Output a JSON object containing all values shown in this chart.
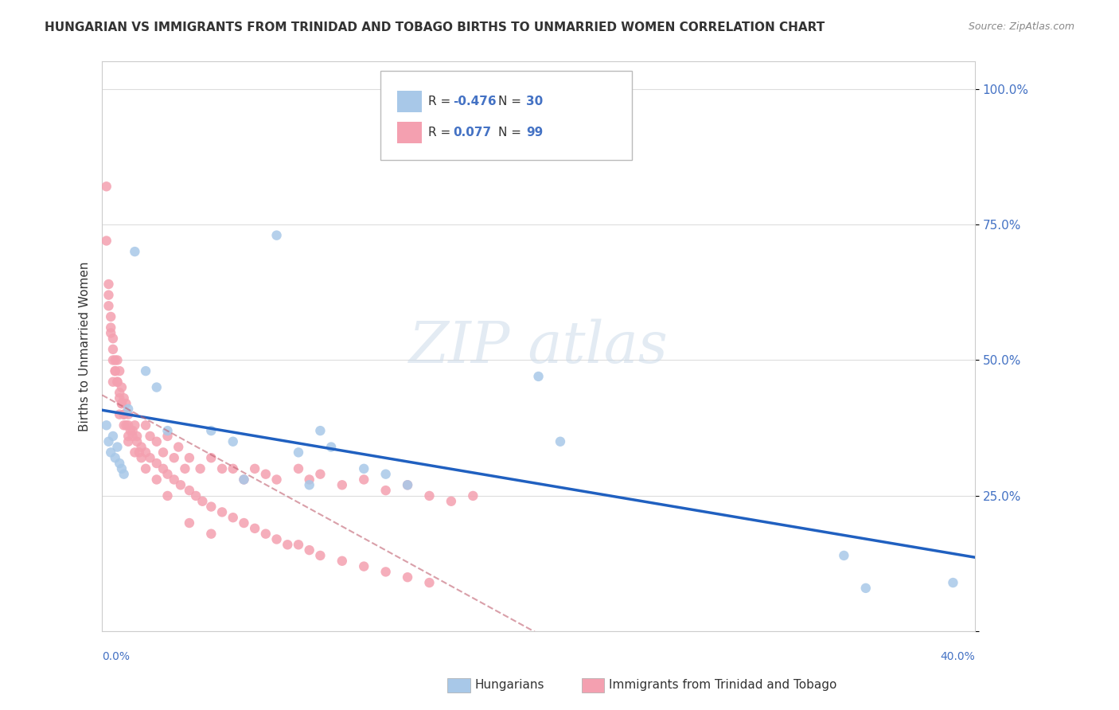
{
  "title": "HUNGARIAN VS IMMIGRANTS FROM TRINIDAD AND TOBAGO BIRTHS TO UNMARRIED WOMEN CORRELATION CHART",
  "source": "Source: ZipAtlas.com",
  "ylabel": "Births to Unmarried Women",
  "ytick_vals": [
    0.0,
    0.25,
    0.5,
    0.75,
    1.0
  ],
  "xlim": [
    0.0,
    0.4
  ],
  "ylim": [
    0.0,
    1.05
  ],
  "series1_color": "#a8c8e8",
  "series2_color": "#f4a0b0",
  "trendline1_color": "#2060c0",
  "trendline2_color": "#c06070",
  "blue_points_x": [
    0.002,
    0.003,
    0.004,
    0.005,
    0.006,
    0.007,
    0.008,
    0.009,
    0.01,
    0.012,
    0.015,
    0.02,
    0.025,
    0.03,
    0.05,
    0.06,
    0.065,
    0.08,
    0.09,
    0.095,
    0.1,
    0.105,
    0.12,
    0.13,
    0.14,
    0.2,
    0.21,
    0.34,
    0.35,
    0.39
  ],
  "blue_points_y": [
    0.38,
    0.35,
    0.33,
    0.36,
    0.32,
    0.34,
    0.31,
    0.3,
    0.29,
    0.41,
    0.7,
    0.48,
    0.45,
    0.37,
    0.37,
    0.35,
    0.28,
    0.73,
    0.33,
    0.27,
    0.37,
    0.34,
    0.3,
    0.29,
    0.27,
    0.47,
    0.35,
    0.14,
    0.08,
    0.09
  ],
  "pink_points_x": [
    0.002,
    0.003,
    0.003,
    0.004,
    0.004,
    0.005,
    0.005,
    0.006,
    0.006,
    0.007,
    0.007,
    0.008,
    0.008,
    0.009,
    0.009,
    0.01,
    0.01,
    0.011,
    0.011,
    0.012,
    0.012,
    0.013,
    0.014,
    0.015,
    0.016,
    0.017,
    0.018,
    0.02,
    0.022,
    0.025,
    0.028,
    0.03,
    0.033,
    0.035,
    0.038,
    0.04,
    0.045,
    0.05,
    0.055,
    0.06,
    0.065,
    0.07,
    0.075,
    0.08,
    0.09,
    0.095,
    0.1,
    0.11,
    0.12,
    0.13,
    0.14,
    0.15,
    0.16,
    0.17,
    0.002,
    0.003,
    0.004,
    0.005,
    0.006,
    0.007,
    0.008,
    0.009,
    0.01,
    0.012,
    0.014,
    0.016,
    0.018,
    0.02,
    0.022,
    0.025,
    0.028,
    0.03,
    0.033,
    0.036,
    0.04,
    0.043,
    0.046,
    0.05,
    0.055,
    0.06,
    0.065,
    0.07,
    0.075,
    0.08,
    0.085,
    0.09,
    0.095,
    0.1,
    0.11,
    0.12,
    0.13,
    0.14,
    0.15,
    0.005,
    0.008,
    0.01,
    0.012,
    0.015,
    0.02,
    0.025,
    0.03,
    0.04,
    0.05
  ],
  "pink_points_y": [
    0.82,
    0.62,
    0.6,
    0.55,
    0.58,
    0.52,
    0.54,
    0.5,
    0.48,
    0.46,
    0.5,
    0.48,
    0.44,
    0.42,
    0.45,
    0.4,
    0.43,
    0.42,
    0.38,
    0.4,
    0.35,
    0.37,
    0.36,
    0.38,
    0.35,
    0.33,
    0.32,
    0.38,
    0.36,
    0.35,
    0.33,
    0.36,
    0.32,
    0.34,
    0.3,
    0.32,
    0.3,
    0.32,
    0.3,
    0.3,
    0.28,
    0.3,
    0.29,
    0.28,
    0.3,
    0.28,
    0.29,
    0.27,
    0.28,
    0.26,
    0.27,
    0.25,
    0.24,
    0.25,
    0.72,
    0.64,
    0.56,
    0.5,
    0.48,
    0.46,
    0.43,
    0.42,
    0.4,
    0.38,
    0.37,
    0.36,
    0.34,
    0.33,
    0.32,
    0.31,
    0.3,
    0.29,
    0.28,
    0.27,
    0.26,
    0.25,
    0.24,
    0.23,
    0.22,
    0.21,
    0.2,
    0.19,
    0.18,
    0.17,
    0.16,
    0.16,
    0.15,
    0.14,
    0.13,
    0.12,
    0.11,
    0.1,
    0.09,
    0.46,
    0.4,
    0.38,
    0.36,
    0.33,
    0.3,
    0.28,
    0.25,
    0.2,
    0.18
  ]
}
